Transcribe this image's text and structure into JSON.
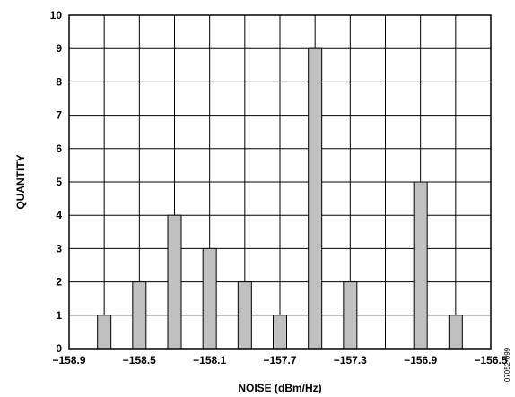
{
  "chart_data": {
    "type": "bar",
    "title": "",
    "xlabel": "NOISE (dBm/Hz)",
    "ylabel": "QUANTITY",
    "x_ticks": [
      "−158.9",
      "−158.5",
      "−158.1",
      "−157.7",
      "−157.3",
      "−156.9",
      "−156.5"
    ],
    "x_tick_values": [
      -158.9,
      -158.5,
      -158.1,
      -157.7,
      -157.3,
      -156.9,
      -156.5
    ],
    "y_ticks": [
      0,
      1,
      2,
      3,
      4,
      5,
      6,
      7,
      8,
      9,
      10
    ],
    "xlim": [
      -158.9,
      -156.5
    ],
    "ylim": [
      0,
      10
    ],
    "grid": true,
    "x": [
      -158.7,
      -158.5,
      -158.3,
      -158.1,
      -157.9,
      -157.7,
      -157.5,
      -157.3,
      -156.9,
      -156.7
    ],
    "values": [
      1,
      2,
      4,
      3,
      2,
      1,
      9,
      2,
      5,
      1
    ],
    "bar_color": "#c0c0c0",
    "figure_id": "07052-099"
  }
}
